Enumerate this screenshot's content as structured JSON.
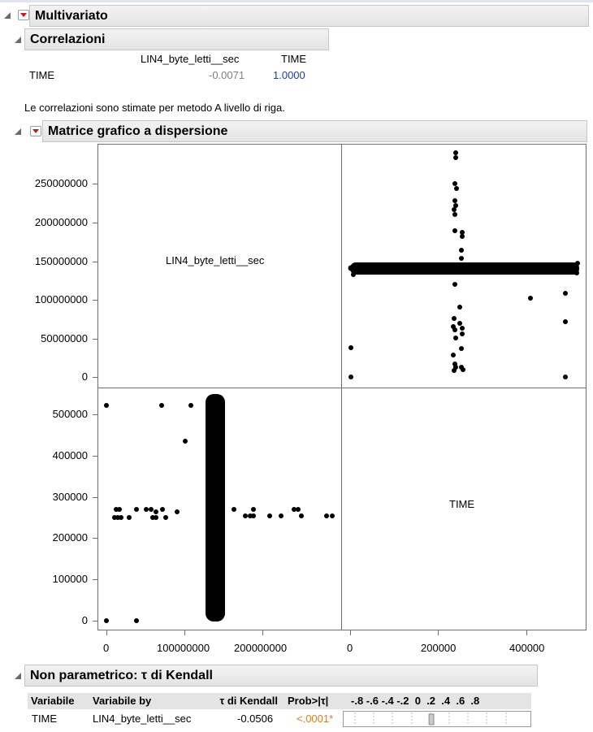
{
  "multivariate": {
    "title": "Multivariato"
  },
  "correlations": {
    "title": "Correlazioni",
    "col1": "LIN4_byte_letti__sec",
    "col2": "TIME",
    "row_label": "TIME",
    "val1": "-0.0071",
    "val2": "1.0000",
    "note": "Le correlazioni sono stimate per metodo A livello di riga."
  },
  "scatter_matrix": {
    "title": "Matrice grafico a dispersione",
    "diag_label_1": "LIN4_byte_letti__sec",
    "diag_label_2": "TIME",
    "y_ticks_top": [
      "250000000",
      "200000000",
      "150000000",
      "100000000",
      "50000000",
      "0"
    ],
    "y_ticks_bottom": [
      "500000",
      "400000",
      "300000",
      "200000",
      "100000",
      "0"
    ],
    "x_ticks_left": [
      "0",
      "100000000",
      "200000000"
    ],
    "x_ticks_right": [
      "0",
      "200000",
      "400000"
    ]
  },
  "kendall": {
    "title": "Non parametrico: τ di Kendall",
    "headers": [
      "Variabile",
      "Variabile by",
      "τ di Kendall",
      "Prob>|τ|",
      "-.8 -.6 -.4 -.2  0  .2  .4  .6  .8"
    ],
    "row": {
      "var": "TIME",
      "var_by": "LIN4_byte_letti__sec",
      "tau": "-0.0506",
      "prob": "<.0001*"
    },
    "tau_value": -0.0506
  },
  "colors": {
    "header_bg": "#e6e6e6",
    "prob_sig": "#e07b1c",
    "value_blue": "#1f3ba8",
    "points": "#000000"
  }
}
